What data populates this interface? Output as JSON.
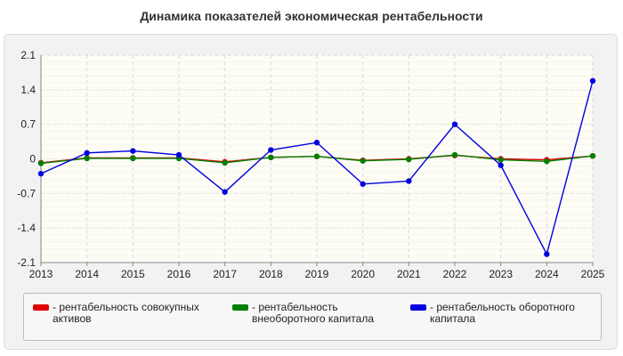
{
  "chart_data": {
    "type": "line",
    "title": "Динамика показателей экономическая рентабельности",
    "xlabel": "",
    "ylabel": "",
    "categories": [
      "2013",
      "2014",
      "2015",
      "2016",
      "2017",
      "2018",
      "2019",
      "2020",
      "2021",
      "2022",
      "2023",
      "2024",
      "2025"
    ],
    "ylim": [
      -2.1,
      2.1
    ],
    "yticks": [
      "2.1",
      "1.4",
      "0.7",
      "0",
      "-0.7",
      "-1.4",
      "-2.1"
    ],
    "ytick_values": [
      2.1,
      1.4,
      0.7,
      0,
      -0.7,
      -1.4,
      -2.1
    ],
    "grid": true,
    "legend_position": "bottom",
    "series": [
      {
        "name": "- рентабельность совокупных активов",
        "color": "#e00000",
        "values": [
          -0.08,
          0.02,
          0.02,
          0.02,
          -0.06,
          0.03,
          0.05,
          -0.03,
          0.0,
          0.07,
          0.0,
          -0.02,
          0.06
        ]
      },
      {
        "name": "- рентабельность внеоборотного капитала",
        "color": "#008000",
        "values": [
          -0.09,
          0.01,
          0.01,
          0.01,
          -0.08,
          0.03,
          0.05,
          -0.04,
          -0.01,
          0.08,
          -0.02,
          -0.05,
          0.06
        ]
      },
      {
        "name": "- рентабельность оборотного капитала",
        "color": "#0000e0",
        "values": [
          -0.3,
          0.12,
          0.16,
          0.08,
          -0.67,
          0.18,
          0.33,
          -0.51,
          -0.45,
          0.7,
          -0.13,
          -1.93,
          1.58
        ]
      }
    ]
  }
}
